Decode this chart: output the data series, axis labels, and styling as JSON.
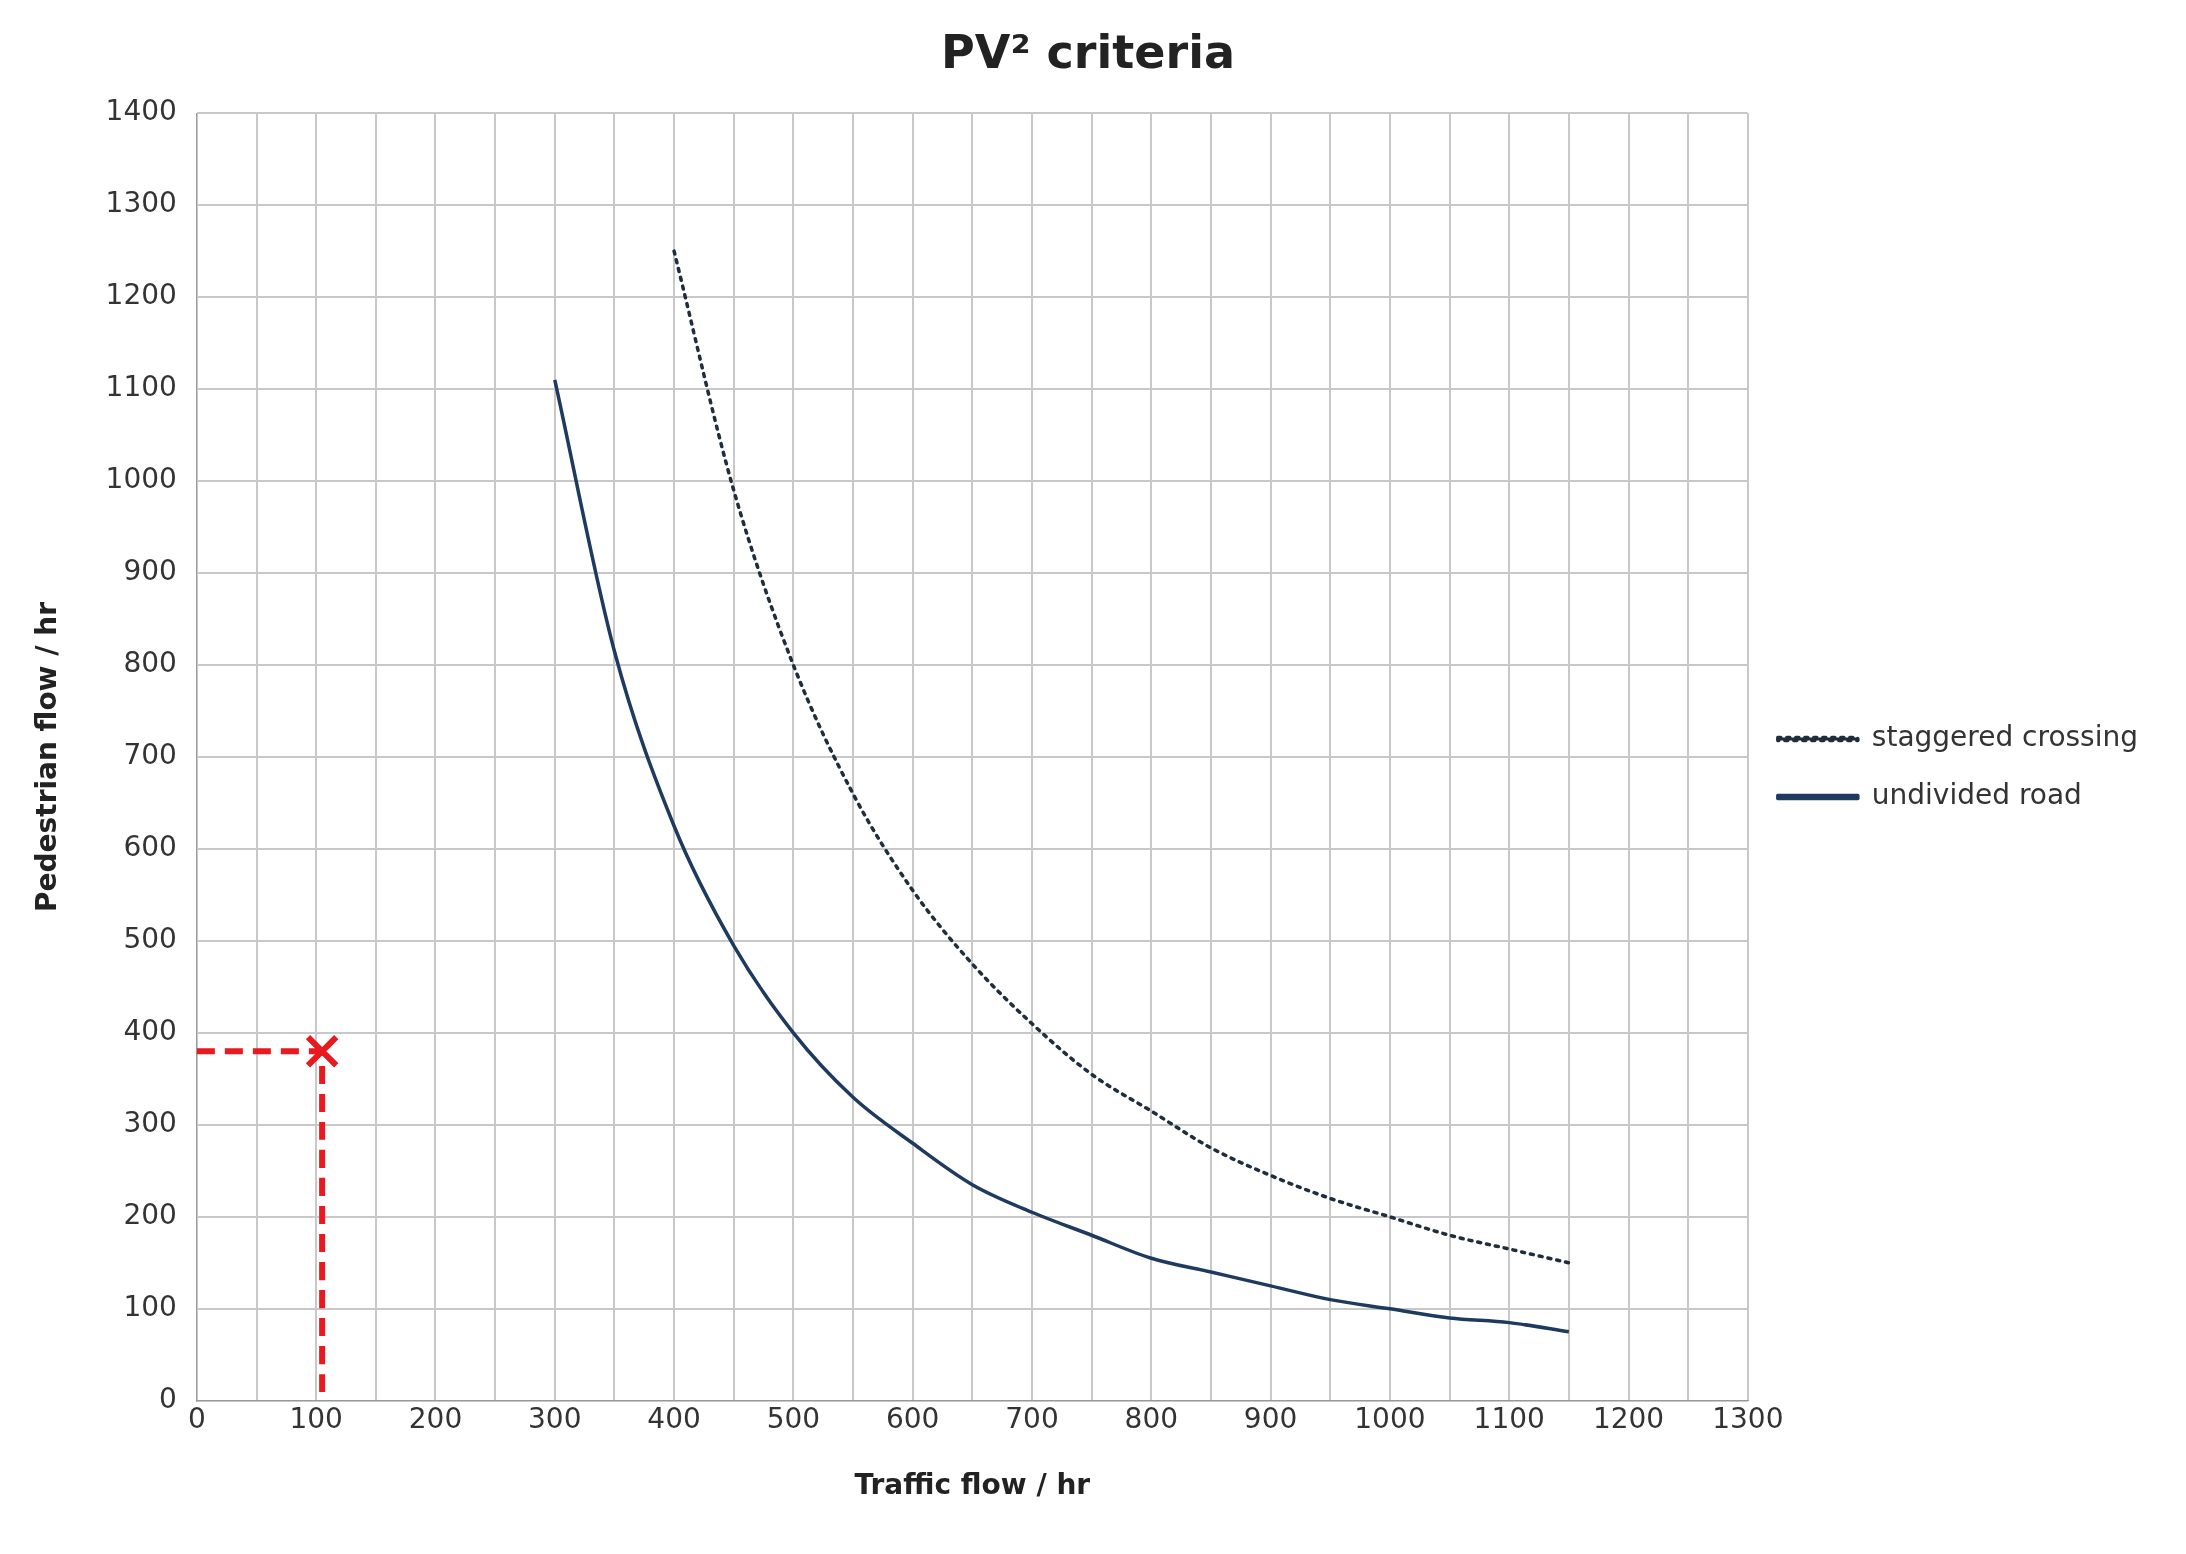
{
  "chart_data": {
    "type": "line",
    "title": "PV² criteria",
    "xlabel": "Traffic flow / hr",
    "ylabel": "Pedestrian flow / hr",
    "xlim": [
      0,
      1300
    ],
    "xticks": [
      0,
      {
        "value": 50,
        "label": null
      },
      100,
      {
        "value": 150,
        "label": null
      },
      200,
      {
        "value": 250,
        "label": null
      },
      300,
      {
        "value": 350,
        "label": null
      },
      400,
      {
        "value": 450,
        "label": null
      },
      500,
      {
        "value": 550,
        "label": null
      },
      600,
      {
        "value": 650,
        "label": null
      },
      700,
      {
        "value": 750,
        "label": null
      },
      800,
      {
        "value": 850,
        "label": null
      },
      900,
      {
        "value": 950,
        "label": null
      },
      1000,
      {
        "value": 1050,
        "label": null
      },
      1100,
      {
        "value": 1150,
        "label": null
      },
      1200,
      {
        "value": 1250,
        "label": null
      },
      1300
    ],
    "ylim": [
      0,
      1400
    ],
    "yticks": [
      0,
      100,
      200,
      300,
      400,
      500,
      600,
      700,
      800,
      900,
      1000,
      1100,
      1200,
      1300,
      1400
    ],
    "grid": true,
    "legend": "right",
    "marker": "none",
    "series": [
      {
        "name": "staggered crossing",
        "color": "#1f2d3d",
        "line_style": "dotted",
        "x": [
          400,
          450,
          500,
          550,
          600,
          650,
          700,
          750,
          800,
          850,
          900,
          950,
          1000,
          1050,
          1100,
          1150
        ],
        "values": [
          1250,
          990,
          800,
          660,
          555,
          475,
          410,
          355,
          315,
          275,
          245,
          220,
          200,
          180,
          165,
          150
        ]
      },
      {
        "name": "undivided road",
        "color": "#1f3a5f",
        "line_style": "solid",
        "x": [
          300,
          350,
          400,
          450,
          500,
          550,
          600,
          650,
          700,
          750,
          800,
          850,
          900,
          950,
          1000,
          1050,
          1100,
          1150
        ],
        "values": [
          1110,
          815,
          625,
          495,
          400,
          330,
          280,
          235,
          205,
          180,
          155,
          140,
          125,
          110,
          100,
          90,
          85,
          75
        ]
      },
      {
        "color": "#e8191f",
        "line_style": "dashed",
        "x": [
          0,
          105,
          105
        ],
        "values": [
          380,
          380,
          0
        ]
      },
      {
        "type": "scatter",
        "color": "#e8191f",
        "marker": "cross",
        "x": [
          105
        ],
        "values": [
          380
        ]
      }
    ]
  }
}
